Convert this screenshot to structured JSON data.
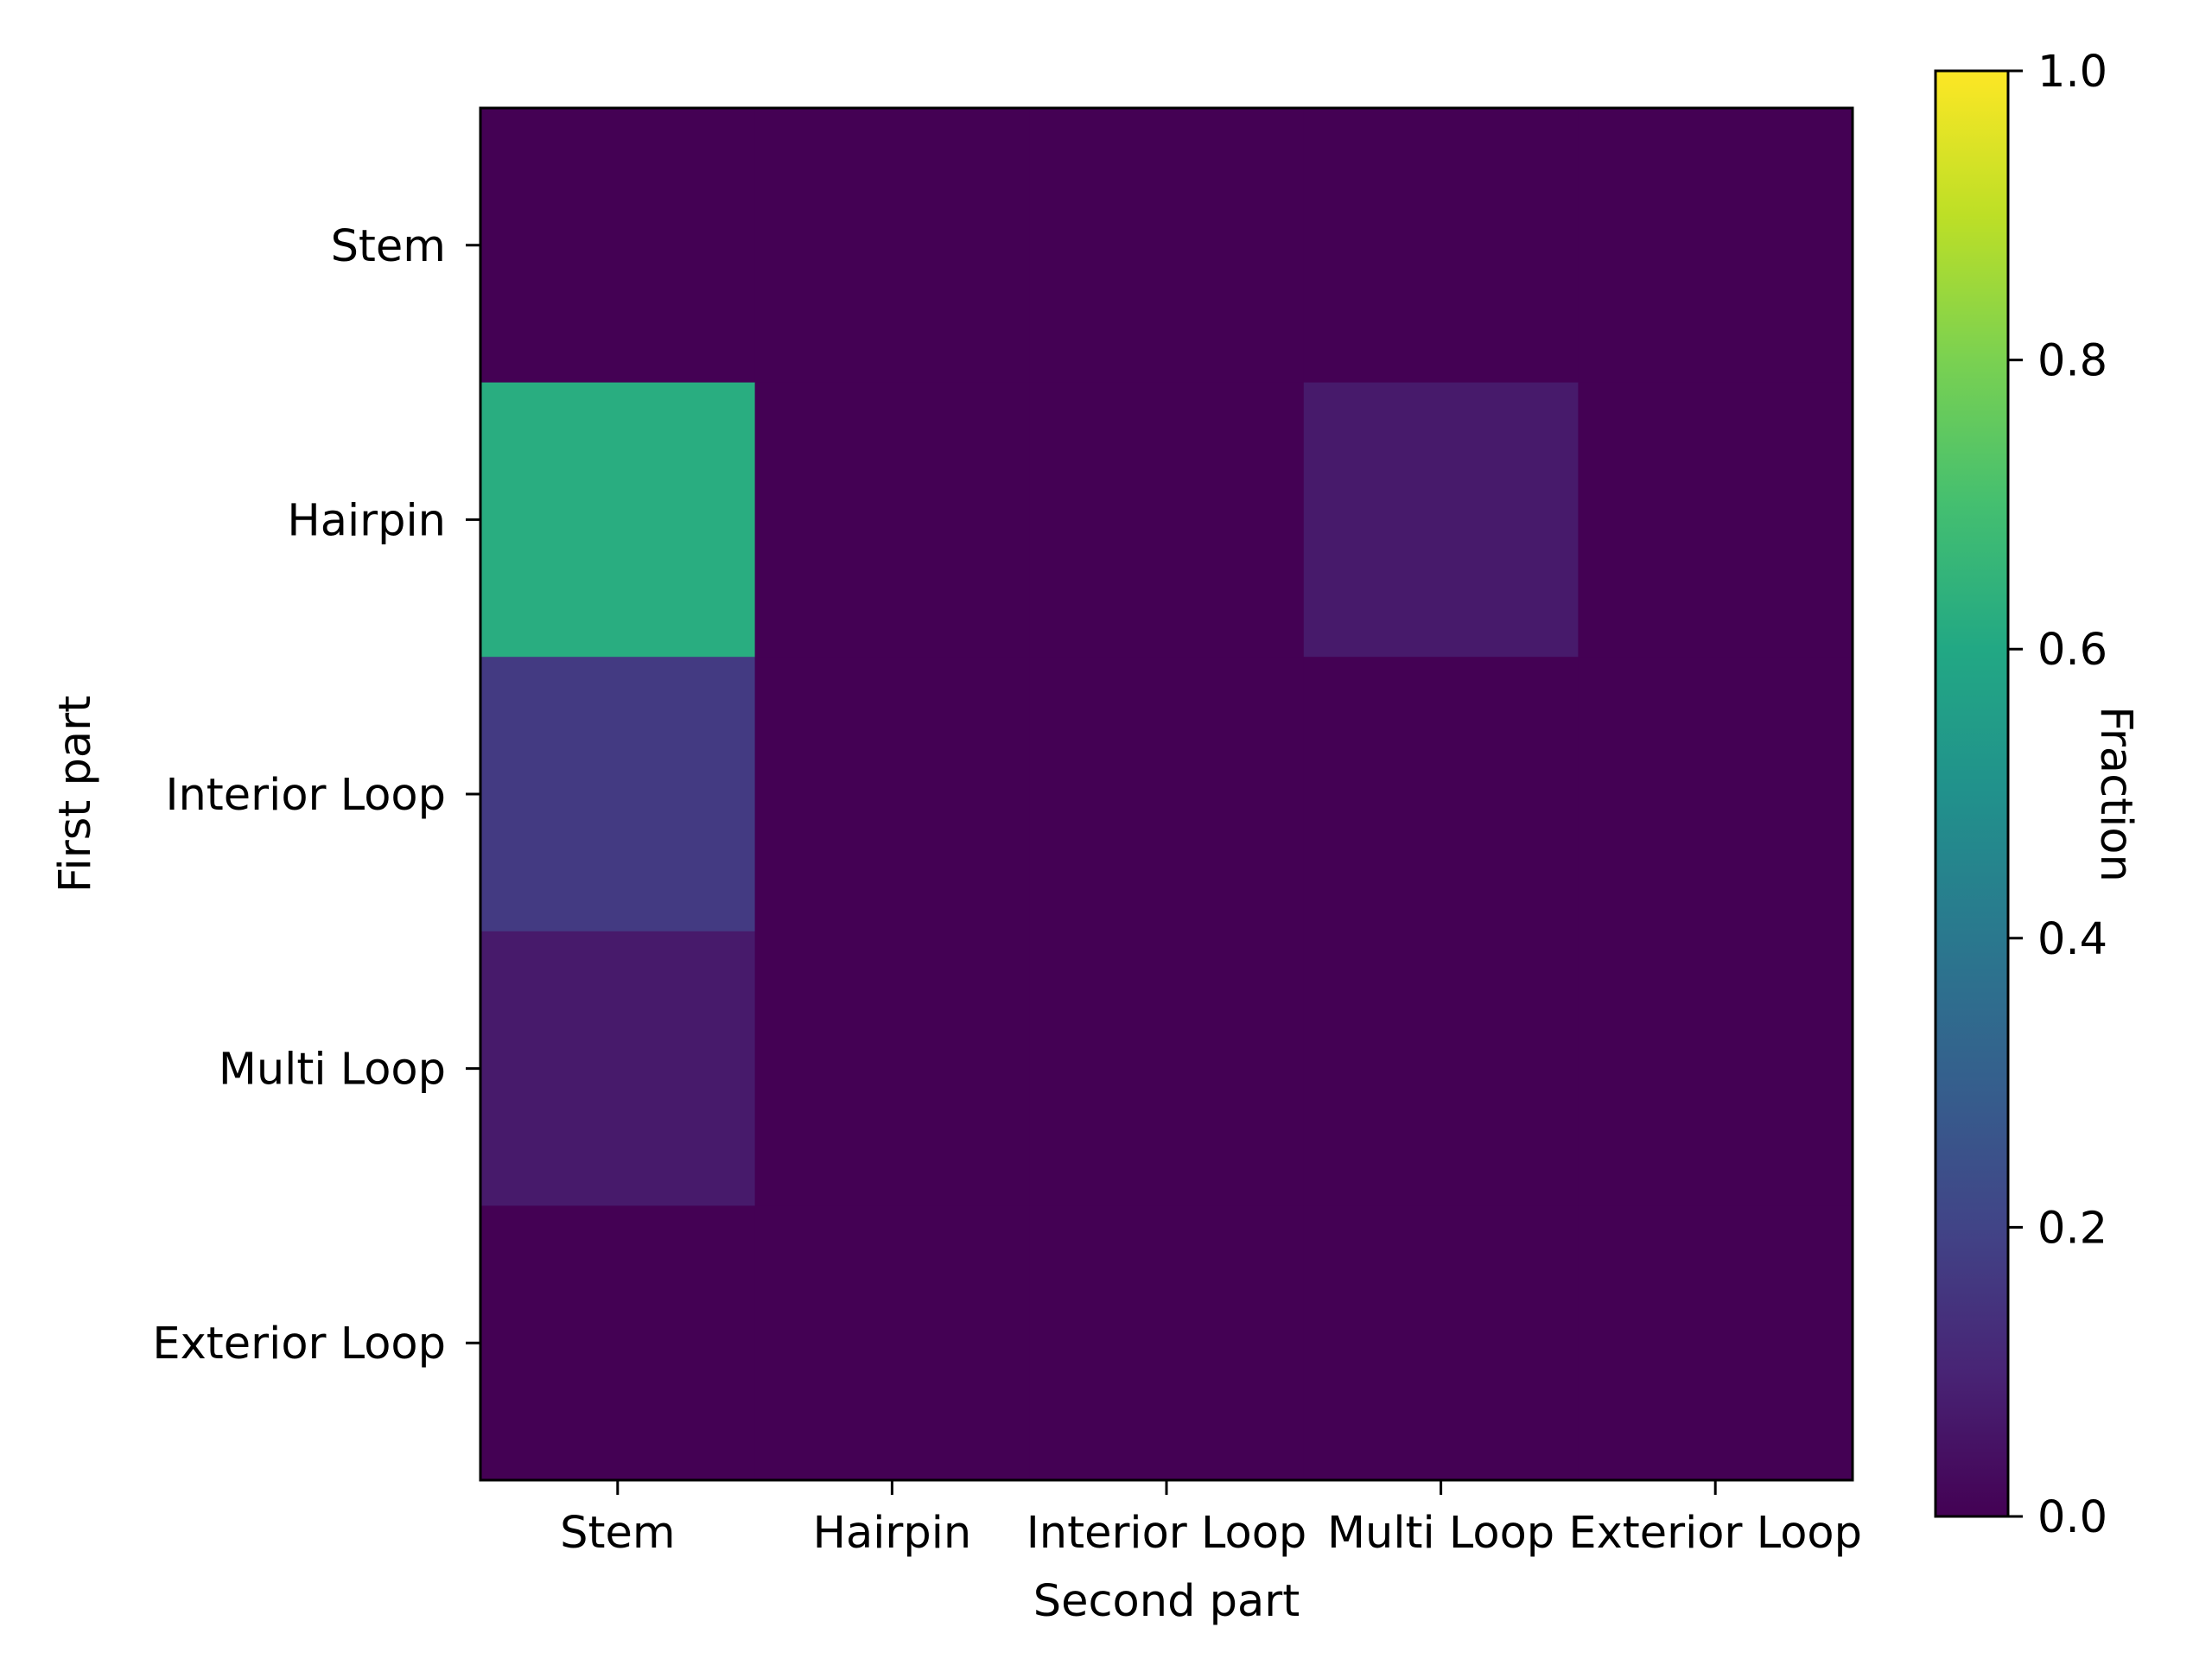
{
  "chart_data": {
    "type": "heatmap",
    "title": "",
    "xlabel": "Second part",
    "ylabel": "First part",
    "x_categories": [
      "Stem",
      "Hairpin",
      "Interior Loop",
      "Multi Loop",
      "Exterior Loop"
    ],
    "y_categories": [
      "Stem",
      "Hairpin",
      "Interior Loop",
      "Multi Loop",
      "Exterior Loop"
    ],
    "values": [
      [
        0.0,
        0.0,
        0.0,
        0.0,
        0.0
      ],
      [
        0.62,
        0.0,
        0.0,
        0.07,
        0.0
      ],
      [
        0.17,
        0.0,
        0.0,
        0.0,
        0.0
      ],
      [
        0.07,
        0.0,
        0.0,
        0.0,
        0.0
      ],
      [
        0.0,
        0.0,
        0.0,
        0.0,
        0.0
      ]
    ],
    "colormap": "viridis",
    "colorbar": {
      "label": "Fraction",
      "range": [
        0.0,
        1.0
      ],
      "ticks": [
        0.0,
        0.2,
        0.4,
        0.6,
        0.8,
        1.0
      ],
      "tick_labels": [
        "0.0",
        "0.2",
        "0.4",
        "0.6",
        "0.8",
        "1.0"
      ]
    },
    "grid": false
  }
}
